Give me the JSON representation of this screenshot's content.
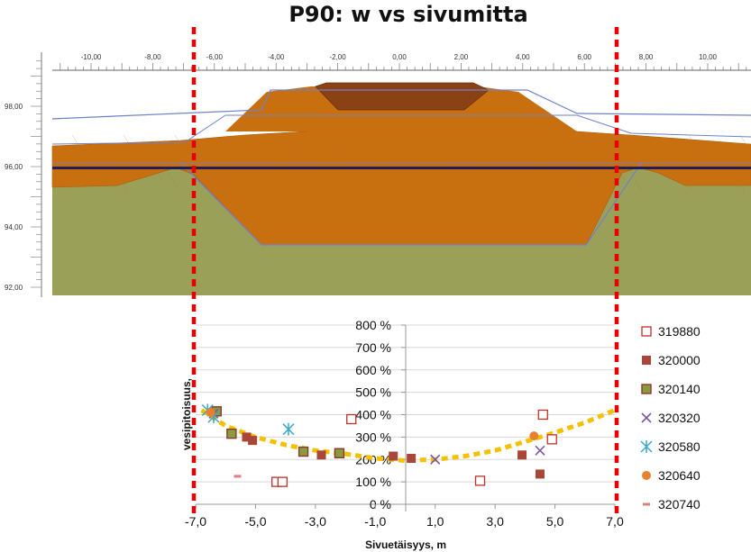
{
  "title": "P90: w vs sivumitta",
  "cross_section": {
    "x_ticks": [
      "-10,00",
      "-8,00",
      "-6,00",
      "-4,00",
      "-2,00",
      "0,00",
      "2,00",
      "4,00",
      "6,00",
      "8,00",
      "10,00"
    ],
    "y_ticks": [
      "98,00",
      "96,00",
      "94,00",
      "92,00"
    ],
    "colors": {
      "fill": "#c8700f",
      "core": "#8a4214",
      "subsoil": "#9ba058",
      "water_line": "#1e1e5a",
      "outline": "#6f80cc",
      "marker": "#e80000"
    }
  },
  "chart_data": {
    "type": "scatter",
    "title": "P90: w vs sivumitta",
    "xlabel": "Sivuetäisyys, m",
    "ylabel": "vesipitoisuus,",
    "xlim": [
      -7,
      7
    ],
    "ylim": [
      0,
      800
    ],
    "x_ticks": [
      "-7,0",
      "-5,0",
      "-3,0",
      "-1,0",
      "1,0",
      "3,0",
      "5,0",
      "7,0"
    ],
    "y_ticks": [
      "0 %",
      "100 %",
      "200 %",
      "300 %",
      "400 %",
      "500 %",
      "600 %",
      "700 %",
      "800 %"
    ],
    "grid": "horizontal",
    "legend_position": "right",
    "series": [
      {
        "name": "319880",
        "marker": "square-open",
        "color": "#c0302a",
        "points": [
          [
            -4.3,
            100
          ],
          [
            -4.1,
            100
          ],
          [
            -1.8,
            380
          ],
          [
            2.5,
            105
          ],
          [
            4.6,
            400
          ],
          [
            4.9,
            290
          ]
        ]
      },
      {
        "name": "320000",
        "marker": "square",
        "color": "#a84638",
        "points": [
          [
            -5.3,
            300
          ],
          [
            -5.1,
            285
          ],
          [
            -2.8,
            220
          ],
          [
            -0.4,
            215
          ],
          [
            0.2,
            205
          ],
          [
            3.9,
            220
          ],
          [
            4.5,
            135
          ]
        ]
      },
      {
        "name": "320140",
        "marker": "square-olive",
        "color": "#8a9a3c",
        "points": [
          [
            -6.3,
            415
          ],
          [
            -5.8,
            315
          ],
          [
            -3.4,
            235
          ],
          [
            -2.2,
            228
          ]
        ]
      },
      {
        "name": "320320",
        "marker": "x",
        "color": "#7a5aa0",
        "points": [
          [
            -6.4,
            405
          ],
          [
            1.0,
            200
          ],
          [
            4.5,
            240
          ]
        ]
      },
      {
        "name": "320580",
        "marker": "asterisk",
        "color": "#3aa8c8",
        "points": [
          [
            -6.6,
            420
          ],
          [
            -6.4,
            390
          ],
          [
            -3.9,
            335
          ]
        ]
      },
      {
        "name": "320640",
        "marker": "circle",
        "color": "#e88030",
        "points": [
          [
            -6.5,
            410
          ],
          [
            4.3,
            305
          ]
        ]
      },
      {
        "name": "320740",
        "marker": "dash",
        "color": "#e08080",
        "points": [
          [
            -5.6,
            125
          ]
        ]
      }
    ],
    "trend": {
      "color": "#f5c000",
      "points": [
        [
          -6.8,
          420
        ],
        [
          -6.0,
          350
        ],
        [
          -5.0,
          300
        ],
        [
          -4.0,
          265
        ],
        [
          -3.0,
          240
        ],
        [
          -2.0,
          225
        ],
        [
          -1.0,
          205
        ],
        [
          0.0,
          195
        ],
        [
          1.0,
          200
        ],
        [
          2.0,
          215
        ],
        [
          3.0,
          240
        ],
        [
          4.0,
          280
        ],
        [
          5.0,
          320
        ],
        [
          6.0,
          365
        ],
        [
          7.0,
          420
        ]
      ]
    }
  }
}
